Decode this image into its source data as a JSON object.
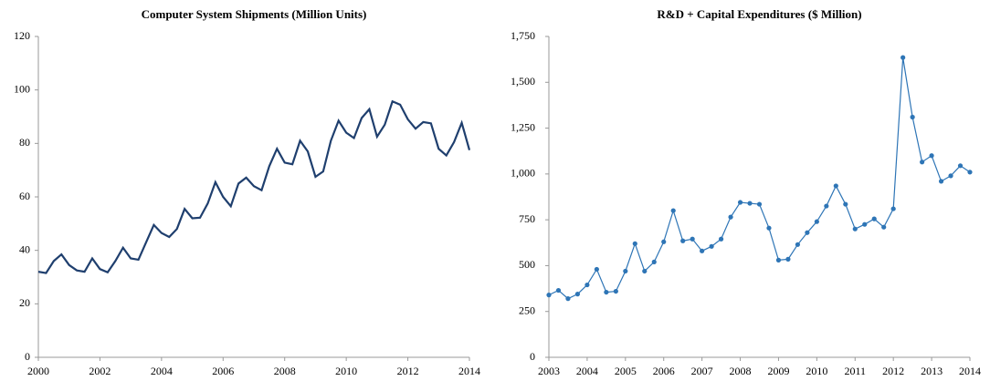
{
  "chart_data": [
    {
      "type": "line",
      "title": "Computer System Shipments (Million Units)",
      "x": [
        2000,
        2000.25,
        2000.5,
        2000.75,
        2001,
        2001.25,
        2001.5,
        2001.75,
        2002,
        2002.25,
        2002.5,
        2002.75,
        2003,
        2003.25,
        2003.5,
        2003.75,
        2004,
        2004.25,
        2004.5,
        2004.75,
        2005,
        2005.25,
        2005.5,
        2005.75,
        2006,
        2006.25,
        2006.5,
        2006.75,
        2007,
        2007.25,
        2007.5,
        2007.75,
        2008,
        2008.25,
        2008.5,
        2008.75,
        2009,
        2009.25,
        2009.5,
        2009.75,
        2010,
        2010.25,
        2010.5,
        2010.75,
        2011,
        2011.25,
        2011.5,
        2011.75,
        2012,
        2012.25,
        2012.5,
        2012.75,
        2013,
        2013.25,
        2013.5,
        2013.75,
        2014
      ],
      "series": [
        {
          "color": "#1f3f6e",
          "values": [
            32,
            31.5,
            36,
            38.5,
            34.5,
            32.5,
            32,
            37,
            33,
            31.8,
            36,
            41,
            37,
            36.5,
            43,
            49.5,
            46.5,
            45,
            48,
            55.5,
            52,
            52.2,
            57.5,
            65.5,
            60,
            56.5,
            65,
            67.2,
            64,
            62.5,
            71.5,
            78,
            72.8,
            72.2,
            81,
            77,
            67.5,
            69.5,
            81,
            88.5,
            84,
            82,
            89.5,
            92.8,
            82.5,
            87,
            95.7,
            94.5,
            89,
            85.5,
            88,
            87.5,
            78,
            75.5,
            80.5,
            87.7,
            77.5
          ]
        }
      ],
      "xlim": [
        2000,
        2014
      ],
      "xticks": [
        2000,
        2002,
        2004,
        2006,
        2008,
        2010,
        2012,
        2014
      ],
      "ylim": [
        0,
        120
      ],
      "yticks": [
        0,
        20,
        40,
        60,
        80,
        100,
        120
      ],
      "markers": false
    },
    {
      "type": "line",
      "title": "R&D + Capital Expenditures ($ Million)",
      "x": [
        2003,
        2003.25,
        2003.5,
        2003.75,
        2004,
        2004.25,
        2004.5,
        2004.75,
        2005,
        2005.25,
        2005.5,
        2005.75,
        2006,
        2006.25,
        2006.5,
        2006.75,
        2007,
        2007.25,
        2007.5,
        2007.75,
        2008,
        2008.25,
        2008.5,
        2008.75,
        2009,
        2009.25,
        2009.5,
        2009.75,
        2010,
        2010.25,
        2010.5,
        2010.75,
        2011,
        2011.25,
        2011.5,
        2011.75,
        2012,
        2012.25,
        2012.5,
        2012.75,
        2013,
        2013.25,
        2013.5,
        2013.75,
        2014
      ],
      "series": [
        {
          "color": "#2e75b6",
          "values": [
            340,
            365,
            320,
            345,
            395,
            480,
            355,
            360,
            470,
            620,
            470,
            520,
            630,
            800,
            635,
            645,
            580,
            605,
            645,
            765,
            845,
            840,
            835,
            705,
            530,
            535,
            615,
            680,
            740,
            825,
            935,
            835,
            700,
            725,
            755,
            710,
            810,
            1635,
            1310,
            1065,
            1100,
            960,
            990,
            1045,
            1010
          ]
        }
      ],
      "xlim": [
        2003,
        2014
      ],
      "xticks": [
        2003,
        2004,
        2005,
        2006,
        2007,
        2008,
        2009,
        2010,
        2011,
        2012,
        2013,
        2014
      ],
      "ylim": [
        0,
        1750
      ],
      "yticks": [
        0,
        250,
        500,
        750,
        {
          "value": 1000,
          "label": "1,000"
        },
        {
          "value": 1250,
          "label": "1,250"
        },
        {
          "value": 1500,
          "label": "1,500"
        },
        {
          "value": 1750,
          "label": "1,750"
        }
      ],
      "markers": true
    }
  ]
}
